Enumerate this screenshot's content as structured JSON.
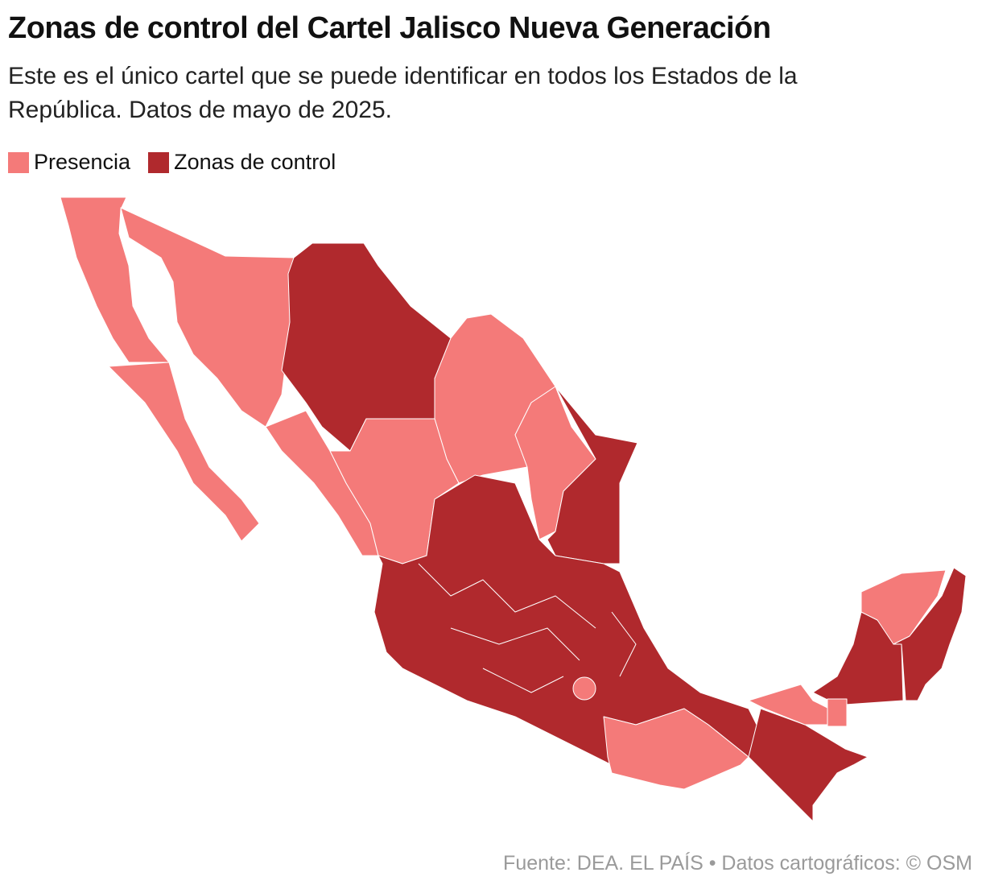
{
  "header": {
    "title": "Zonas de control del Cartel Jalisco Nueva Generación",
    "subtitle": "Este es el único cartel que se puede identificar en todos los Estados de la República. Datos de mayo de 2025."
  },
  "legend": [
    {
      "label": "Presencia",
      "color": "#f47a79"
    },
    {
      "label": "Zonas de control",
      "color": "#b0292d"
    }
  ],
  "source": "Fuente: DEA. EL PAÍS  • Datos cartográficos: © OSM"
}
